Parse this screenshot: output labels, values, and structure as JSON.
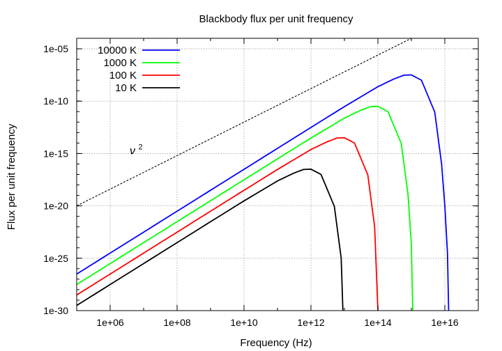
{
  "chart_data": {
    "type": "line",
    "title": "Blackbody flux per unit frequency",
    "xlabel": "Frequency (Hz)",
    "ylabel": "Flux per unit frequency",
    "x_scale": "log",
    "y_scale": "log",
    "xlim": [
      100000,
      100000000000000000
    ],
    "ylim": [
      1e-30,
      0.0001
    ],
    "x_ticks": [
      {
        "value": 1000000,
        "label": "1e+06"
      },
      {
        "value": 100000000,
        "label": "1e+08"
      },
      {
        "value": 10000000000,
        "label": "1e+10"
      },
      {
        "value": 1000000000000,
        "label": "1e+12"
      },
      {
        "value": 100000000000000,
        "label": "1e+14"
      },
      {
        "value": 10000000000000000,
        "label": "1e+16"
      }
    ],
    "y_ticks": [
      {
        "value": 1e-05,
        "label": "1e-05"
      },
      {
        "value": 1e-10,
        "label": "1e-10"
      },
      {
        "value": 1e-15,
        "label": "1e-15"
      },
      {
        "value": 1e-20,
        "label": "1e-20"
      },
      {
        "value": 1e-25,
        "label": "1e-25"
      },
      {
        "value": 1e-30,
        "label": "1e-30"
      }
    ],
    "grid": true,
    "legend_position": "top-left",
    "series": [
      {
        "name": "10000 K",
        "color": "#0000ff",
        "x": [
          100000,
          1000000,
          10000000,
          100000000,
          1000000000,
          10000000000,
          100000000000,
          1000000000000,
          10000000000000,
          100000000000000,
          300000000000000,
          600000000000000,
          1000000000000000,
          2000000000000000,
          5000000000000000,
          8000000000000000,
          10000000000000000,
          12000000000000000,
          13000000000000000
        ],
        "y": [
          3.1e-27,
          3.1e-25,
          3.1e-23,
          3.1e-21,
          3.1e-19,
          3.1e-17,
          3.1e-15,
          3.1e-13,
          3e-11,
          2.4e-09,
          1.3e-08,
          3e-08,
          3.2e-08,
          1e-08,
          9e-12,
          1e-16,
          1e-20,
          3e-25,
          1e-30
        ]
      },
      {
        "name": "1000 K",
        "color": "#00ff00",
        "x": [
          100000,
          1000000,
          10000000,
          100000000,
          1000000000,
          10000000000,
          100000000000,
          1000000000000,
          10000000000000,
          30000000000000,
          60000000000000,
          100000000000000,
          200000000000000,
          500000000000000,
          800000000000000,
          1000000000000000,
          1100000000000000
        ],
        "y": [
          3.1e-28,
          3.1e-26,
          3.1e-24,
          3.1e-22,
          3.1e-20,
          3.1e-18,
          3.1e-16,
          3e-14,
          2.4e-12,
          1.3e-11,
          3e-11,
          3.2e-11,
          1e-11,
          9e-15,
          1e-19,
          2e-24,
          1e-30
        ]
      },
      {
        "name": "100 K",
        "color": "#ff0000",
        "x": [
          100000,
          1000000,
          10000000,
          100000000,
          1000000000,
          10000000000,
          100000000000,
          1000000000000,
          3000000000000,
          6000000000000,
          10000000000000,
          20000000000000,
          50000000000000,
          80000000000000,
          100000000000000
        ],
        "y": [
          3.1e-29,
          3.1e-27,
          3.1e-25,
          3.1e-23,
          3.1e-21,
          3.1e-19,
          3e-17,
          2.4e-15,
          1.3e-14,
          3e-14,
          3.2e-14,
          1e-14,
          9e-18,
          1e-22,
          1e-30
        ]
      },
      {
        "name": "10 K",
        "color": "#000000",
        "x": [
          100000,
          1000000,
          10000000,
          100000000,
          1000000000,
          10000000000,
          100000000000,
          300000000000,
          600000000000,
          1000000000000,
          2000000000000,
          5000000000000,
          8000000000000,
          9000000000000
        ],
        "y": [
          3.1e-30,
          3.1e-28,
          3.1e-26,
          3.1e-24,
          3.1e-22,
          3e-20,
          2.4e-18,
          1.3e-17,
          3e-17,
          3.2e-17,
          1e-17,
          9e-21,
          1e-25,
          1e-30
        ]
      },
      {
        "name": "ν²",
        "color": "#000000",
        "dashed": true,
        "x": [
          100000,
          1000000000000000
        ],
        "y": [
          1e-20,
          0.0001
        ]
      }
    ],
    "annotations": [
      {
        "text": "ν",
        "superscript": "2",
        "x": 100000000,
        "y": 1e-16
      }
    ]
  }
}
